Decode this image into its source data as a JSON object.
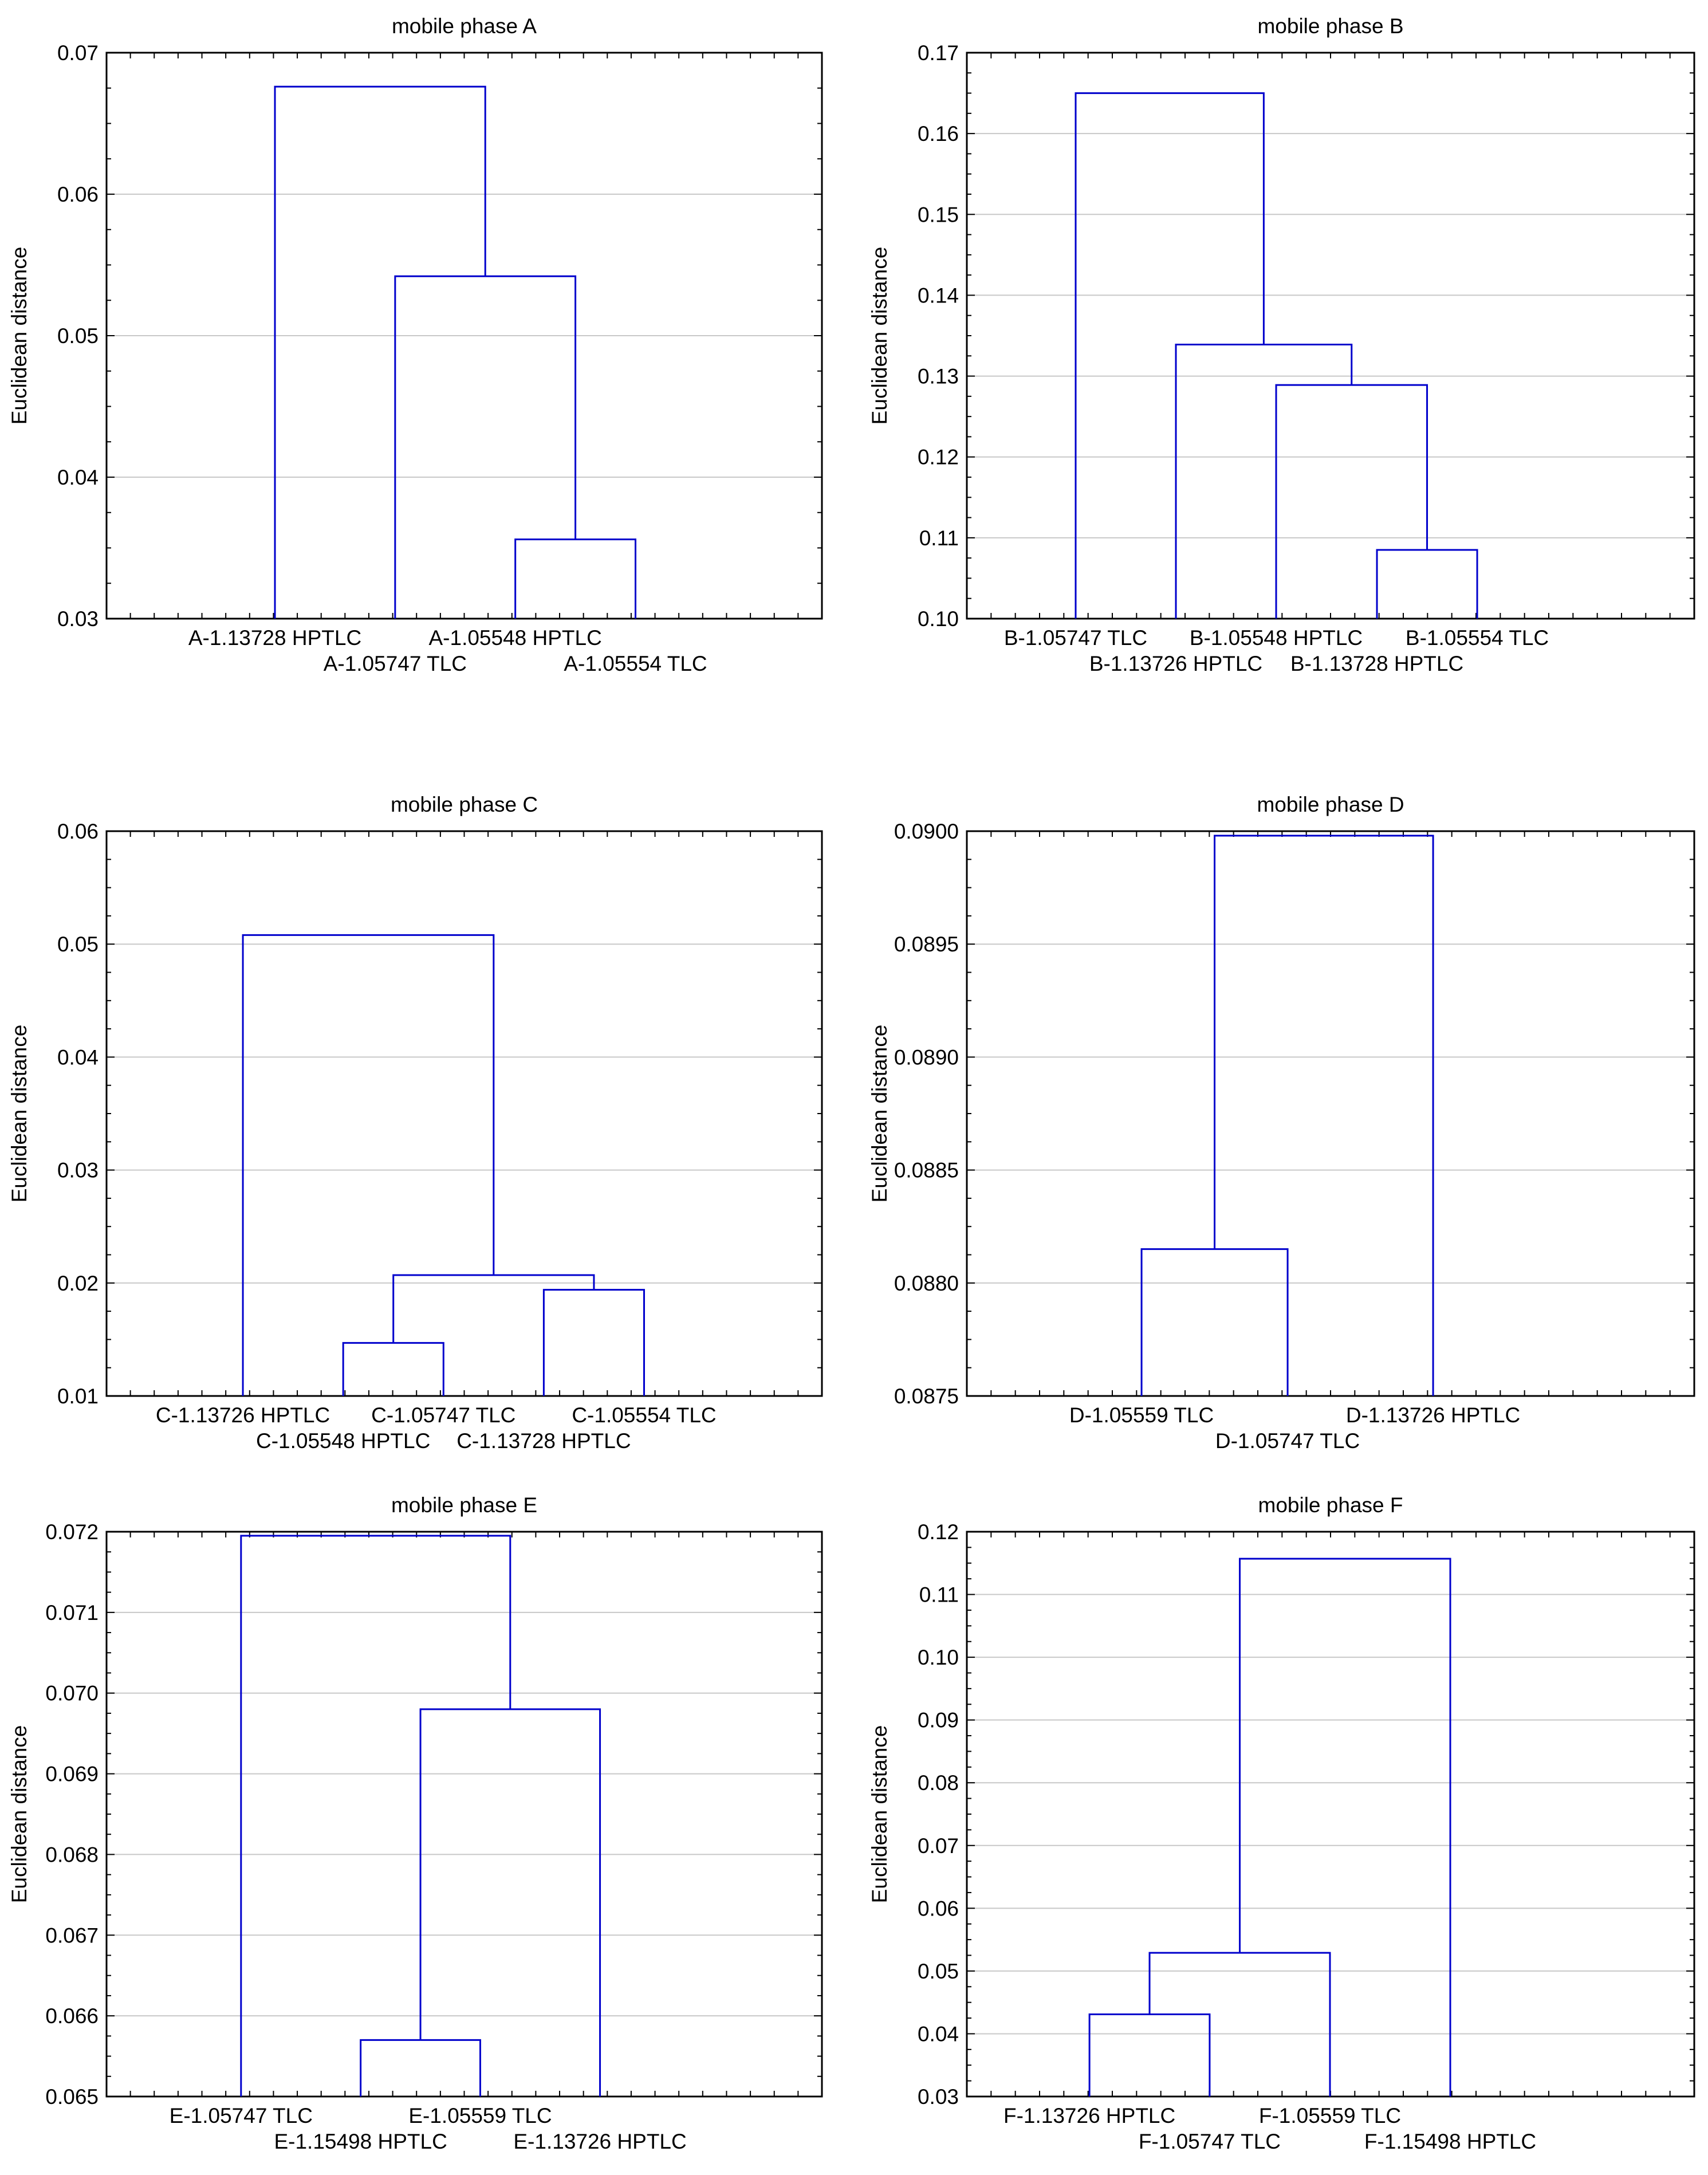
{
  "figure": {
    "colors": {
      "dendrogram": "#0000cc",
      "axis": "#000000",
      "grid": "#c8c8c8",
      "background": "#ffffff"
    }
  },
  "chart_data": [
    {
      "type": "dendrogram",
      "title": "mobile phase A",
      "ylabel": "Euclidean distance",
      "ylim": [
        0.03,
        0.07
      ],
      "yticks": [
        "0.03",
        "0.04",
        "0.05",
        "0.06",
        "0.07"
      ],
      "leaves": [
        "A-1.13728 HPTLC",
        "A-1.05747 TLC",
        "A-1.05548 HPTLC",
        "A-1.05554 TLC"
      ],
      "merges": [
        {
          "left": 2,
          "right": 3,
          "height": 0.0356
        },
        {
          "left": 1,
          "right": 4,
          "height": 0.0542
        },
        {
          "left": 0,
          "right": 5,
          "height": 0.0676
        }
      ]
    },
    {
      "type": "dendrogram",
      "title": "mobile phase B",
      "ylabel": "Euclidean distance",
      "ylim": [
        0.1,
        0.17
      ],
      "yticks": [
        "0.10",
        "0.11",
        "0.12",
        "0.13",
        "0.14",
        "0.15",
        "0.16",
        "0.17"
      ],
      "leaves": [
        "B-1.05747 TLC",
        "B-1.13726 HPTLC",
        "B-1.05548 HPTLC",
        "B-1.13728 HPTLC",
        "B-1.05554 TLC"
      ],
      "merges": [
        {
          "left": 3,
          "right": 4,
          "height": 0.1085
        },
        {
          "left": 2,
          "right": 5,
          "height": 0.1289
        },
        {
          "left": 1,
          "right": 6,
          "height": 0.1339
        },
        {
          "left": 0,
          "right": 7,
          "height": 0.165
        }
      ]
    },
    {
      "type": "dendrogram",
      "title": "mobile phase C",
      "ylabel": "Euclidean distance",
      "ylim": [
        0.01,
        0.06
      ],
      "yticks": [
        "0.01",
        "0.02",
        "0.03",
        "0.04",
        "0.05",
        "0.06"
      ],
      "leaves": [
        "C-1.13726 HPTLC",
        "C-1.05548 HPTLC",
        "C-1.05747 TLC",
        "C-1.13728 HPTLC",
        "C-1.05554 TLC"
      ],
      "merges": [
        {
          "left": 1,
          "right": 2,
          "height": 0.0147
        },
        {
          "left": 3,
          "right": 4,
          "height": 0.0194
        },
        {
          "left": 5,
          "right": 6,
          "height": 0.0207
        },
        {
          "left": 0,
          "right": 7,
          "height": 0.0508
        }
      ]
    },
    {
      "type": "dendrogram",
      "title": "mobile phase D",
      "ylabel": "Euclidean distance",
      "ylim": [
        0.0875,
        0.09
      ],
      "yticks": [
        "0.0875",
        "0.0880",
        "0.0885",
        "0.0890",
        "0.0895",
        "0.0900"
      ],
      "leaves": [
        "D-1.05559 TLC",
        "D-1.05747 TLC",
        "D-1.13726 HPTLC"
      ],
      "merges": [
        {
          "left": 0,
          "right": 1,
          "height": 0.08815
        },
        {
          "left": 2,
          "right": 3,
          "height": 0.08998
        }
      ]
    },
    {
      "type": "dendrogram",
      "title": "mobile phase E",
      "ylabel": "Euclidean distance",
      "ylim": [
        0.065,
        0.072
      ],
      "yticks": [
        "0.065",
        "0.066",
        "0.067",
        "0.068",
        "0.069",
        "0.070",
        "0.071",
        "0.072"
      ],
      "leaves": [
        "E-1.05747 TLC",
        "E-1.15498 HPTLC",
        "E-1.05559 TLC",
        "E-1.13726 HPTLC"
      ],
      "merges": [
        {
          "left": 1,
          "right": 2,
          "height": 0.0657
        },
        {
          "left": 3,
          "right": 4,
          "height": 0.0698
        },
        {
          "left": 0,
          "right": 5,
          "height": 0.07195
        }
      ]
    },
    {
      "type": "dendrogram",
      "title": "mobile phase F",
      "ylabel": "Euclidean distance",
      "ylim": [
        0.03,
        0.12
      ],
      "yticks": [
        "0.03",
        "0.04",
        "0.05",
        "0.06",
        "0.07",
        "0.08",
        "0.09",
        "0.10",
        "0.11",
        "0.12"
      ],
      "leaves": [
        "F-1.13726 HPTLC",
        "F-1.05747 TLC",
        "F-1.05559 TLC",
        "F-1.15498 HPTLC"
      ],
      "merges": [
        {
          "left": 0,
          "right": 1,
          "height": 0.0431
        },
        {
          "left": 4,
          "right": 2,
          "height": 0.0529
        },
        {
          "left": 5,
          "right": 3,
          "height": 0.1157
        }
      ]
    }
  ]
}
